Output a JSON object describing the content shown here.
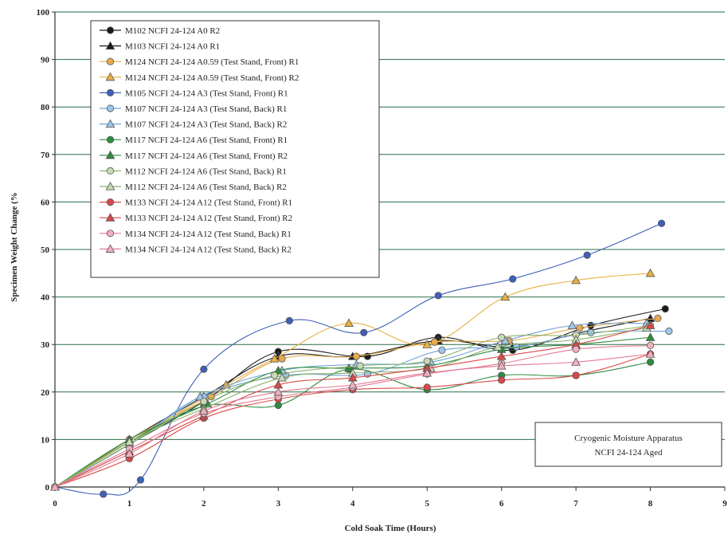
{
  "chart_data": {
    "type": "line",
    "title": "",
    "xlabel": "Cold Soak Time (Hours)",
    "ylabel": "Specimen Weight Change (%",
    "xlim": [
      0,
      9
    ],
    "ylim": [
      0,
      100
    ],
    "x_ticks": [
      "0",
      "1",
      "2",
      "3",
      "4",
      "5",
      "6",
      "7",
      "8",
      "9"
    ],
    "y_ticks": [
      "0",
      "10",
      "20",
      "30",
      "40",
      "50",
      "60",
      "70",
      "80",
      "90",
      "100"
    ],
    "grid": "horizontal",
    "legend_position": "top-left",
    "annotation": [
      "Cryogenic Moisture Apparatus",
      "NCFI 24-124 Aged"
    ],
    "series": [
      {
        "name": "M102 NCFI 24-124 A0 R2",
        "color": "#1a1a1a",
        "marker": "circle",
        "fill": "#1a1a1a",
        "points": [
          [
            0,
            0
          ],
          [
            1,
            9
          ],
          [
            2,
            18
          ],
          [
            3,
            28.5
          ],
          [
            4.2,
            27.5
          ],
          [
            5.15,
            31.5
          ],
          [
            6.15,
            28.8
          ],
          [
            7.2,
            34
          ],
          [
            8.2,
            37.5
          ]
        ]
      },
      {
        "name": "M103 NCFI 24-124 A0 R1",
        "color": "#1a1a1a",
        "marker": "triangle",
        "fill": "#1a1a1a",
        "points": [
          [
            0,
            0
          ],
          [
            1,
            10
          ],
          [
            2,
            19
          ],
          [
            3,
            27.5
          ],
          [
            4,
            27.5
          ],
          [
            5.15,
            30.8
          ],
          [
            6.15,
            29.5
          ],
          [
            7.2,
            33
          ],
          [
            8,
            35.5
          ]
        ]
      },
      {
        "name": "M124 NCFI 24-124 A0.59 (Test Stand, Front) R1",
        "color": "#e8a94d",
        "marker": "circle",
        "fill": "#e8a94d",
        "points": [
          [
            0,
            0
          ],
          [
            1,
            10
          ],
          [
            2.1,
            19
          ],
          [
            3.05,
            27
          ],
          [
            4.05,
            27.5
          ],
          [
            5.1,
            30.5
          ],
          [
            6.1,
            30.8
          ],
          [
            7.05,
            33.5
          ],
          [
            8.1,
            35.5
          ]
        ]
      },
      {
        "name": "M124 NCFI 24-124 A0.59 (Test Stand, Front) R2",
        "color": "#e8b040",
        "marker": "triangle",
        "fill": "#e8b040",
        "points": [
          [
            0,
            0
          ],
          [
            1,
            9.5
          ],
          [
            2.3,
            21.5
          ],
          [
            2.95,
            27
          ],
          [
            3.95,
            34.5
          ],
          [
            5,
            30
          ],
          [
            6.05,
            40
          ],
          [
            7,
            43.5
          ],
          [
            8,
            45
          ]
        ]
      },
      {
        "name": "M105 NCFI 24-124 A3 (Test Stand, Front) R1",
        "color": "#3f5fb8",
        "marker": "circle",
        "fill": "#3f5fb8",
        "points": [
          [
            0,
            0
          ],
          [
            0.65,
            -1.5
          ],
          [
            1.15,
            1.5
          ],
          [
            2,
            24.8
          ],
          [
            3.15,
            35
          ],
          [
            4.15,
            32.5
          ],
          [
            5.15,
            40.3
          ],
          [
            6.15,
            43.8
          ],
          [
            7.15,
            48.8
          ],
          [
            8.15,
            55.5
          ]
        ]
      },
      {
        "name": "M107 NCFI 24-124 A3 (Test Stand, Back) R1",
        "color": "#6fa3d8",
        "marker": "circle",
        "fill": "#9fc6ea",
        "points": [
          [
            0,
            0
          ],
          [
            1,
            9
          ],
          [
            2,
            19
          ],
          [
            3.1,
            23.5
          ],
          [
            4.2,
            23.8
          ],
          [
            5.2,
            28.8
          ],
          [
            6.2,
            29.5
          ],
          [
            7.2,
            32.5
          ],
          [
            8.25,
            32.8
          ]
        ]
      },
      {
        "name": "M107 NCFI 24-124 A3 (Test Stand, Back) R2",
        "color": "#6fa3d8",
        "marker": "triangle",
        "fill": "#9fc6ea",
        "points": [
          [
            0,
            0
          ],
          [
            1,
            9
          ],
          [
            1.95,
            19
          ],
          [
            3.05,
            24.5
          ],
          [
            4.05,
            25.8
          ],
          [
            5.05,
            26.3
          ],
          [
            6.05,
            30.8
          ],
          [
            6.95,
            34
          ],
          [
            7.95,
            34.5
          ]
        ]
      },
      {
        "name": "M117 NCFI 24-124 A6 (Test Stand, Front) R1",
        "color": "#2e8b3e",
        "marker": "circle",
        "fill": "#2e8b3e",
        "points": [
          [
            0,
            0
          ],
          [
            1,
            9.5
          ],
          [
            2,
            17
          ],
          [
            3,
            17.2
          ],
          [
            3.95,
            24.8
          ],
          [
            5,
            20.5
          ],
          [
            6,
            23.5
          ],
          [
            7,
            23.5
          ],
          [
            8,
            26.3
          ]
        ]
      },
      {
        "name": "M117 NCFI 24-124 A6 (Test Stand, Front) R2",
        "color": "#2e8b3e",
        "marker": "triangle",
        "fill": "#2e8b3e",
        "points": [
          [
            0,
            0
          ],
          [
            1,
            10
          ],
          [
            2.05,
            17.5
          ],
          [
            3,
            24.5
          ],
          [
            3.95,
            25
          ],
          [
            5,
            25.5
          ],
          [
            6,
            29
          ],
          [
            7,
            30
          ],
          [
            8,
            31.5
          ]
        ]
      },
      {
        "name": "M112 NCFI 24-124 A6 (Test Stand, Back) R1",
        "color": "#8ab06a",
        "marker": "circle",
        "fill": "#c7dab3",
        "points": [
          [
            0,
            0
          ],
          [
            1,
            9
          ],
          [
            2,
            18
          ],
          [
            2.95,
            23.5
          ],
          [
            4.1,
            25.5
          ],
          [
            5,
            26.5
          ],
          [
            6,
            31.5
          ],
          [
            7,
            32
          ],
          [
            8,
            34
          ]
        ]
      },
      {
        "name": "M112 NCFI 24-124 A6 (Test Stand, Back) R2",
        "color": "#8ab06a",
        "marker": "triangle",
        "fill": "#c7dab3",
        "points": [
          [
            0,
            0
          ],
          [
            1,
            9.5
          ],
          [
            2,
            16.5
          ],
          [
            3.05,
            23
          ],
          [
            4,
            24
          ],
          [
            5.05,
            25
          ],
          [
            5.95,
            29.5
          ],
          [
            7,
            31
          ],
          [
            7.95,
            33.5
          ]
        ]
      },
      {
        "name": "M133 NCFI 24-124 A12 (Test Stand, Front) R1",
        "color": "#d94848",
        "marker": "circle",
        "fill": "#d94848",
        "points": [
          [
            0,
            0
          ],
          [
            1,
            6
          ],
          [
            2,
            14.5
          ],
          [
            3,
            18.5
          ],
          [
            4,
            20.5
          ],
          [
            5,
            21
          ],
          [
            6,
            22.5
          ],
          [
            7,
            23.5
          ],
          [
            8,
            28
          ]
        ]
      },
      {
        "name": "M133 NCFI 24-124 A12 (Test Stand, Front) R2",
        "color": "#d94848",
        "marker": "triangle",
        "fill": "#d94848",
        "points": [
          [
            0,
            0
          ],
          [
            1,
            7.5
          ],
          [
            2,
            15
          ],
          [
            3,
            21.5
          ],
          [
            4,
            23
          ],
          [
            5,
            25
          ],
          [
            6,
            27.5
          ],
          [
            7,
            30
          ],
          [
            8,
            34
          ]
        ]
      },
      {
        "name": "M134 NCFI 24-124 A12 (Test Stand, Back) R1",
        "color": "#e37a94",
        "marker": "circle",
        "fill": "#f0b0c0",
        "points": [
          [
            0,
            0
          ],
          [
            1,
            8
          ],
          [
            2,
            15.5
          ],
          [
            3,
            19
          ],
          [
            4,
            21
          ],
          [
            5,
            23.8
          ],
          [
            6,
            26
          ],
          [
            7,
            29
          ],
          [
            8,
            29.8
          ]
        ]
      },
      {
        "name": "M134 NCFI 24-124 A12 (Test Stand, Back) R2",
        "color": "#e37a94",
        "marker": "triangle",
        "fill": "#f0b0c0",
        "points": [
          [
            0,
            0
          ],
          [
            1,
            7
          ],
          [
            2,
            16
          ],
          [
            3,
            20
          ],
          [
            4,
            21.5
          ],
          [
            5,
            24
          ],
          [
            6,
            25.5
          ],
          [
            7,
            26.3
          ],
          [
            8,
            28
          ]
        ]
      }
    ]
  }
}
